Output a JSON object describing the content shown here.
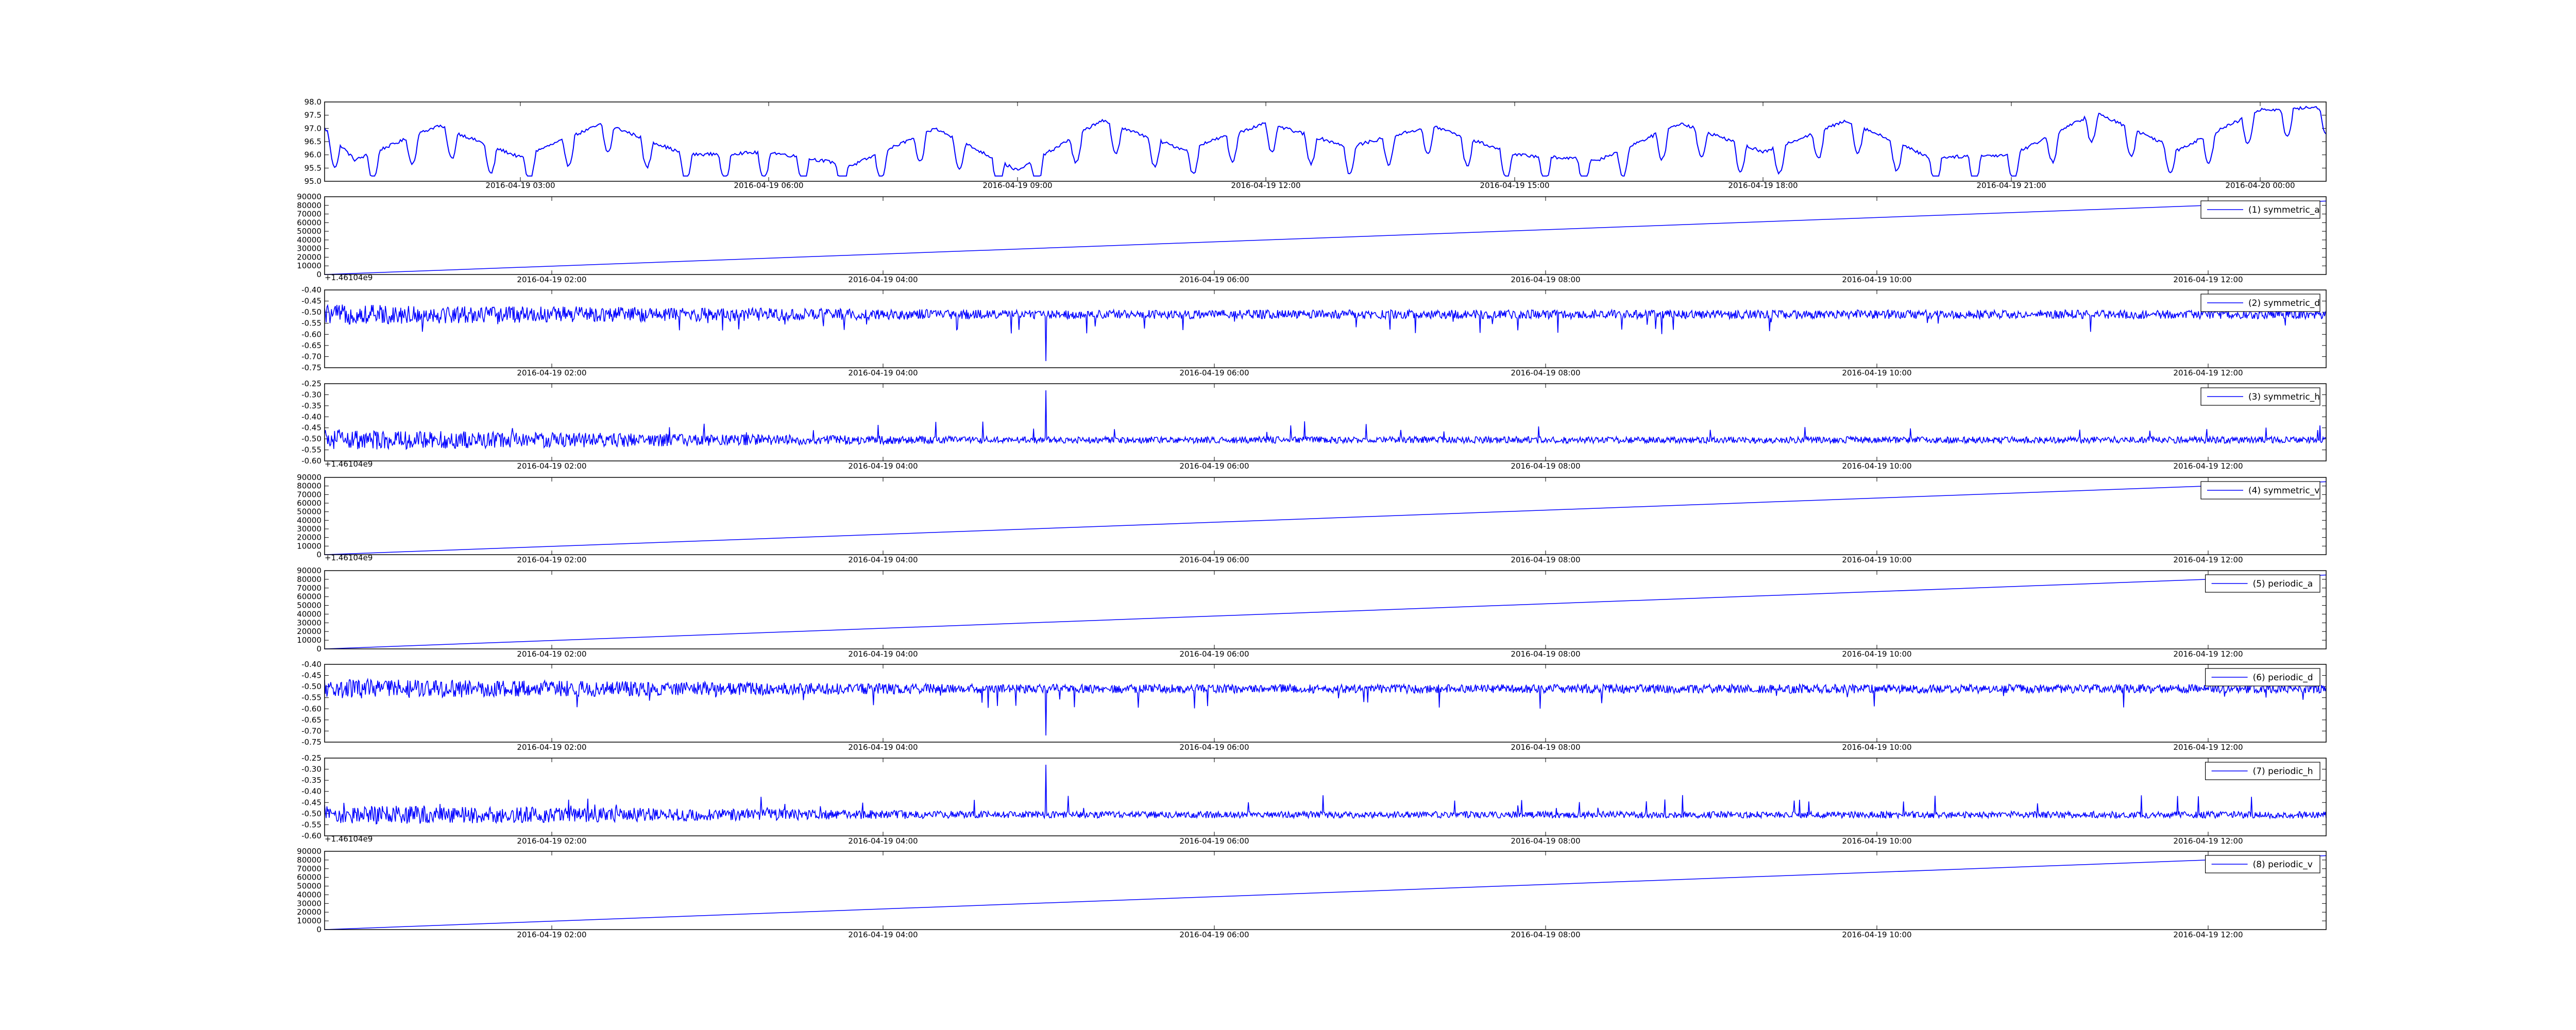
{
  "figure": {
    "background": "#ffffff",
    "line_color": "#0000ff"
  },
  "chart_data": [
    {
      "type": "line",
      "ylim": [
        95.0,
        98.0
      ],
      "yticks": [
        "95.0",
        "95.5",
        "96.0",
        "96.5",
        "97.0",
        "97.5",
        "98.0"
      ],
      "x_tick_labels": [
        "2016-04-19 03:00",
        "2016-04-19 06:00",
        "2016-04-19 09:00",
        "2016-04-19 12:00",
        "2016-04-19 15:00",
        "2016-04-19 18:00",
        "2016-04-19 21:00",
        "2016-04-20 00:00"
      ],
      "offset_text": "",
      "legend": "",
      "legend_position": "none",
      "series": [
        {
          "x": [
            "2016-04-19 00:38",
            "2016-04-19 01:00",
            "2016-04-19 02:00",
            "2016-04-19 03:00",
            "2016-04-19 04:00",
            "2016-04-19 05:00",
            "2016-04-19 06:00",
            "2016-04-19 07:00",
            "2016-04-19 08:00",
            "2016-04-19 09:00",
            "2016-04-19 10:00",
            "2016-04-19 11:00",
            "2016-04-19 12:00",
            "2016-04-19 13:00",
            "2016-04-19 14:00",
            "2016-04-19 15:00",
            "2016-04-19 16:00",
            "2016-04-19 17:00",
            "2016-04-19 18:00",
            "2016-04-19 19:00",
            "2016-04-19 20:00",
            "2016-04-19 21:00",
            "2016-04-19 22:00",
            "2016-04-19 23:00",
            "2016-04-20 00:00",
            "2016-04-20 00:47"
          ],
          "y": [
            97.0,
            95.8,
            97.1,
            95.9,
            97.2,
            96.0,
            96.1,
            95.6,
            97.0,
            95.4,
            97.3,
            96.2,
            97.2,
            96.3,
            97.1,
            96.0,
            95.8,
            97.2,
            96.1,
            97.3,
            95.9,
            96.0,
            97.6,
            96.2,
            97.7,
            97.8
          ],
          "style": "level-shifting line"
        }
      ]
    },
    {
      "type": "line",
      "ylim": [
        0,
        90000
      ],
      "yticks": [
        "0",
        "10000",
        "20000",
        "30000",
        "40000",
        "50000",
        "60000",
        "70000",
        "80000",
        "90000"
      ],
      "x_tick_labels": [
        "2016-04-19 02:00",
        "2016-04-19 04:00",
        "2016-04-19 06:00",
        "2016-04-19 08:00",
        "2016-04-19 10:00",
        "2016-04-19 12:00"
      ],
      "offset_text": "+1.46104e9",
      "legend": "(1) symmetric_a",
      "legend_position": "upper right",
      "series": [
        {
          "name": "(1) symmetric_a",
          "x": [
            "2016-04-19 00:38",
            "2016-04-19 12:45"
          ],
          "y": [
            0,
            85000
          ],
          "style": "linear ramp"
        }
      ]
    },
    {
      "type": "line",
      "ylim": [
        -0.75,
        -0.4
      ],
      "yticks": [
        "-0.75",
        "-0.70",
        "-0.65",
        "-0.60",
        "-0.55",
        "-0.50",
        "-0.45",
        "-0.40"
      ],
      "x_tick_labels": [
        "2016-04-19 02:00",
        "2016-04-19 04:00",
        "2016-04-19 06:00",
        "2016-04-19 08:00",
        "2016-04-19 10:00",
        "2016-04-19 12:00"
      ],
      "offset_text": "",
      "legend": "(2) symmetric_d",
      "legend_position": "upper right",
      "series": [
        {
          "name": "(2) symmetric_d",
          "baseline": -0.51,
          "noise_start": 0.045,
          "noise_end": 0.02,
          "spike_direction": "down",
          "largest_spike_at": "2016-04-19 05:00",
          "largest_spike_value": -0.72,
          "style": "dense noise"
        }
      ]
    },
    {
      "type": "line",
      "ylim": [
        -0.6,
        -0.25
      ],
      "yticks": [
        "-0.60",
        "-0.55",
        "-0.50",
        "-0.45",
        "-0.40",
        "-0.35",
        "-0.30",
        "-0.25"
      ],
      "x_tick_labels": [
        "2016-04-19 02:00",
        "2016-04-19 04:00",
        "2016-04-19 06:00",
        "2016-04-19 08:00",
        "2016-04-19 10:00",
        "2016-04-19 12:00"
      ],
      "offset_text": "+1.46104e9",
      "legend": "(3) symmetric_h",
      "legend_position": "upper right",
      "series": [
        {
          "name": "(3) symmetric_h",
          "baseline": -0.505,
          "noise_start": 0.045,
          "noise_end": 0.015,
          "spike_direction": "up",
          "largest_spike_at": "2016-04-19 05:00",
          "largest_spike_value": -0.28,
          "style": "dense noise"
        }
      ]
    },
    {
      "type": "line",
      "ylim": [
        0,
        90000
      ],
      "yticks": [
        "0",
        "10000",
        "20000",
        "30000",
        "40000",
        "50000",
        "60000",
        "70000",
        "80000",
        "90000"
      ],
      "x_tick_labels": [
        "2016-04-19 02:00",
        "2016-04-19 04:00",
        "2016-04-19 06:00",
        "2016-04-19 08:00",
        "2016-04-19 10:00",
        "2016-04-19 12:00"
      ],
      "offset_text": "+1.46104e9",
      "legend": "(4) symmetric_v",
      "legend_position": "upper right",
      "series": [
        {
          "name": "(4) symmetric_v",
          "x": [
            "2016-04-19 00:38",
            "2016-04-19 12:45"
          ],
          "y": [
            0,
            85000
          ],
          "style": "linear ramp"
        }
      ]
    },
    {
      "type": "line",
      "ylim": [
        0,
        90000
      ],
      "yticks": [
        "0",
        "10000",
        "20000",
        "30000",
        "40000",
        "50000",
        "60000",
        "70000",
        "80000",
        "90000"
      ],
      "x_tick_labels": [
        "2016-04-19 02:00",
        "2016-04-19 04:00",
        "2016-04-19 06:00",
        "2016-04-19 08:00",
        "2016-04-19 10:00",
        "2016-04-19 12:00"
      ],
      "offset_text": "",
      "legend": "(5) periodic_a",
      "legend_position": "upper right",
      "series": [
        {
          "name": "(5) periodic_a",
          "x": [
            "2016-04-19 00:38",
            "2016-04-19 12:45"
          ],
          "y": [
            0,
            85000
          ],
          "style": "linear ramp"
        }
      ]
    },
    {
      "type": "line",
      "ylim": [
        -0.75,
        -0.4
      ],
      "yticks": [
        "-0.75",
        "-0.70",
        "-0.65",
        "-0.60",
        "-0.55",
        "-0.50",
        "-0.45",
        "-0.40"
      ],
      "x_tick_labels": [
        "2016-04-19 02:00",
        "2016-04-19 04:00",
        "2016-04-19 06:00",
        "2016-04-19 08:00",
        "2016-04-19 10:00",
        "2016-04-19 12:00"
      ],
      "offset_text": "",
      "legend": "(6) periodic_d",
      "legend_position": "upper right",
      "series": [
        {
          "name": "(6) periodic_d",
          "baseline": -0.51,
          "noise_start": 0.045,
          "noise_end": 0.02,
          "spike_direction": "down",
          "largest_spike_at": "2016-04-19 05:00",
          "largest_spike_value": -0.72,
          "style": "dense noise"
        }
      ]
    },
    {
      "type": "line",
      "ylim": [
        -0.6,
        -0.25
      ],
      "yticks": [
        "-0.60",
        "-0.55",
        "-0.50",
        "-0.45",
        "-0.40",
        "-0.35",
        "-0.30",
        "-0.25"
      ],
      "x_tick_labels": [
        "2016-04-19 02:00",
        "2016-04-19 04:00",
        "2016-04-19 06:00",
        "2016-04-19 08:00",
        "2016-04-19 10:00",
        "2016-04-19 12:00"
      ],
      "offset_text": "+1.46104e9",
      "legend": "(7) periodic_h",
      "legend_position": "upper right",
      "series": [
        {
          "name": "(7) periodic_h",
          "baseline": -0.505,
          "noise_start": 0.045,
          "noise_end": 0.015,
          "spike_direction": "up",
          "largest_spike_at": "2016-04-19 05:00",
          "largest_spike_value": -0.28,
          "style": "dense noise"
        }
      ]
    },
    {
      "type": "line",
      "ylim": [
        0,
        90000
      ],
      "yticks": [
        "0",
        "10000",
        "20000",
        "30000",
        "40000",
        "50000",
        "60000",
        "70000",
        "80000",
        "90000"
      ],
      "x_tick_labels": [
        "2016-04-19 02:00",
        "2016-04-19 04:00",
        "2016-04-19 06:00",
        "2016-04-19 08:00",
        "2016-04-19 10:00",
        "2016-04-19 12:00"
      ],
      "offset_text": "",
      "legend": "(8) periodic_v",
      "legend_position": "upper right",
      "series": [
        {
          "name": "(8) periodic_v",
          "x": [
            "2016-04-19 00:38",
            "2016-04-19 12:45"
          ],
          "y": [
            0,
            85000
          ],
          "style": "linear ramp"
        }
      ]
    }
  ]
}
